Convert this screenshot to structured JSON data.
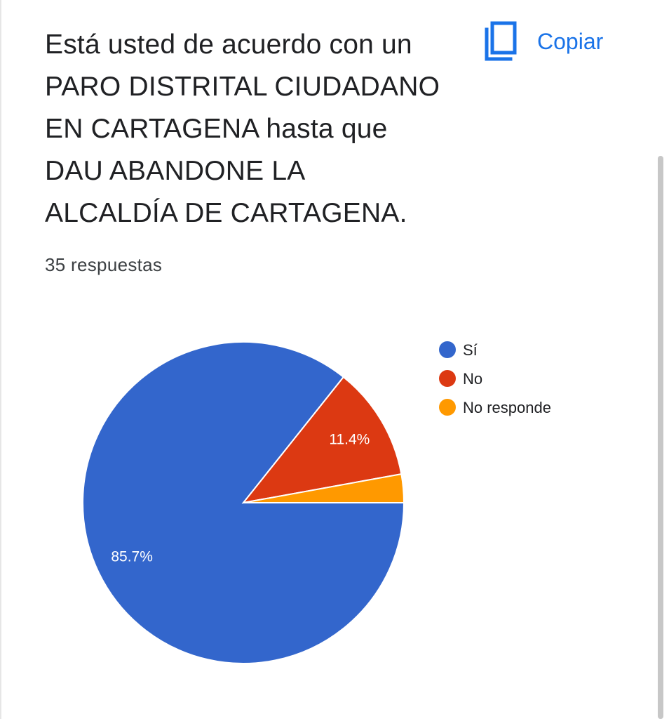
{
  "header": {
    "question": "Está usted de acuerdo con un\nPARO DISTRITAL CIUDADANO\nEN CARTAGENA hasta que\nDAU ABANDONE LA\nALCALDÍA DE CARTAGENA.",
    "response_count": "35 respuestas",
    "copy_label": "Copiar",
    "copy_icon": "copy-icon"
  },
  "colors": {
    "accent": "#1a73e8",
    "si": "#3366cc",
    "no": "#dc3912",
    "no_responde": "#ff9900"
  },
  "chart_data": {
    "type": "pie",
    "title": "",
    "categories": [
      "Sí",
      "No",
      "No responde"
    ],
    "values": [
      30,
      4,
      1
    ],
    "percent_labels": [
      "85.7%",
      "11.4%",
      ""
    ],
    "legend_position": "right",
    "colors": [
      "#3366cc",
      "#dc3912",
      "#ff9900"
    ]
  }
}
